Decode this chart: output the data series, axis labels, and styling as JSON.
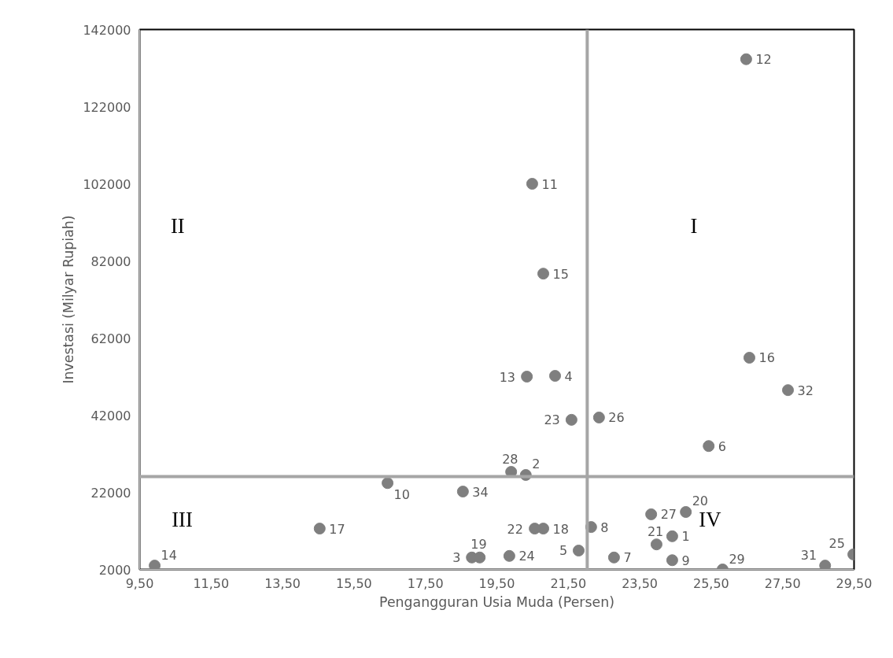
{
  "chart_data": {
    "type": "scatter",
    "xlabel": "Pengangguran Usia Muda (Persen)",
    "ylabel": "Investasi (Milyar Rupiah)",
    "series": [
      {
        "color": "#7f7f7f",
        "x": [
          24.41,
          20.31,
          18.8,
          21.13,
          21.79,
          25.43,
          22.78,
          22.14,
          24.41,
          16.44,
          20.49,
          26.48,
          20.34,
          9.92,
          20.8,
          26.57,
          14.54,
          20.8,
          19.02,
          24.79,
          23.97,
          20.56,
          21.59,
          19.85,
          29.48,
          22.36,
          23.82,
          19.9,
          25.82,
          28.69,
          27.65,
          18.55
        ],
        "values": [
          10600,
          26500,
          5100,
          52200,
          6900,
          34000,
          5100,
          13000,
          4400,
          24400,
          102000,
          134300,
          52000,
          3000,
          78700,
          56900,
          12600,
          12600,
          5100,
          16900,
          8500,
          12600,
          40800,
          5500,
          5900,
          41400,
          16300,
          27300,
          2000,
          3000,
          48500,
          22200
        ]
      }
    ],
    "xlim": [
      9.5,
      29.5
    ],
    "xticks": [
      {
        "value": 9.5,
        "label": "9,50"
      },
      {
        "value": 11.5,
        "label": "11,50"
      },
      {
        "value": 13.5,
        "label": "13,50"
      },
      {
        "value": 15.5,
        "label": "15,50"
      },
      {
        "value": 17.5,
        "label": "17,50"
      },
      {
        "value": 19.5,
        "label": "19,50"
      },
      {
        "value": 21.5,
        "label": "21,50"
      },
      {
        "value": 23.5,
        "label": "23,50"
      },
      {
        "value": 25.5,
        "label": "25,50"
      },
      {
        "value": 27.5,
        "label": "27,50"
      },
      {
        "value": 29.5,
        "label": "29,50"
      }
    ],
    "ylim": [
      2000,
      142000
    ],
    "yticks": [
      2000,
      22000,
      42000,
      62000,
      82000,
      102000,
      122000,
      142000
    ],
    "ref_lines": [
      {
        "axis": "x",
        "value": 22.03,
        "color": "#a6a6a6"
      },
      {
        "axis": "y",
        "value": 26100,
        "color": "#a6a6a6"
      }
    ],
    "annotations": [
      "I",
      "II",
      "III",
      "IV",
      {
        "text": "1",
        "x": 24.41,
        "y": 10600
      },
      {
        "text": "2",
        "x": 20.31,
        "y": 26500
      },
      {
        "text": "3",
        "x": 18.8,
        "y": 5100
      },
      {
        "text": "4",
        "x": 21.13,
        "y": 52200
      },
      {
        "text": "5",
        "x": 21.79,
        "y": 6900
      },
      {
        "text": "6",
        "x": 25.43,
        "y": 34000
      },
      {
        "text": "7",
        "x": 22.78,
        "y": 5100
      },
      {
        "text": "8",
        "x": 22.14,
        "y": 13000
      },
      {
        "text": "9",
        "x": 24.41,
        "y": 4400
      },
      {
        "text": "10",
        "x": 16.44,
        "y": 24400
      },
      {
        "text": "11",
        "x": 20.49,
        "y": 102000
      },
      {
        "text": "12",
        "x": 26.48,
        "y": 134300
      },
      {
        "text": "13",
        "x": 20.34,
        "y": 52000
      },
      {
        "text": "14",
        "x": 9.92,
        "y": 3000
      },
      {
        "text": "15",
        "x": 20.8,
        "y": 78700
      },
      {
        "text": "16",
        "x": 26.57,
        "y": 56900
      },
      {
        "text": "17",
        "x": 14.54,
        "y": 12600
      },
      {
        "text": "18",
        "x": 20.8,
        "y": 12600
      },
      {
        "text": "19",
        "x": 19.02,
        "y": 5100
      },
      {
        "text": "20",
        "x": 24.79,
        "y": 16900
      },
      {
        "text": "21",
        "x": 23.97,
        "y": 8500
      },
      {
        "text": "22",
        "x": 20.56,
        "y": 12600
      },
      {
        "text": "23",
        "x": 21.59,
        "y": 40800
      },
      {
        "text": "24",
        "x": 19.85,
        "y": 5500
      },
      {
        "text": "25",
        "x": 29.48,
        "y": 5900
      },
      {
        "text": "26",
        "x": 22.36,
        "y": 41400
      },
      {
        "text": "27",
        "x": 23.82,
        "y": 16300
      },
      {
        "text": "28",
        "x": 19.9,
        "y": 27300
      },
      {
        "text": "29",
        "x": 25.82,
        "y": 2000
      },
      {
        "text": "31",
        "x": 28.69,
        "y": 3000
      },
      {
        "text": "32",
        "x": 27.65,
        "y": 48500
      },
      {
        "text": "34",
        "x": 18.55,
        "y": 22200
      }
    ],
    "marker": "circle",
    "grid": false
  }
}
